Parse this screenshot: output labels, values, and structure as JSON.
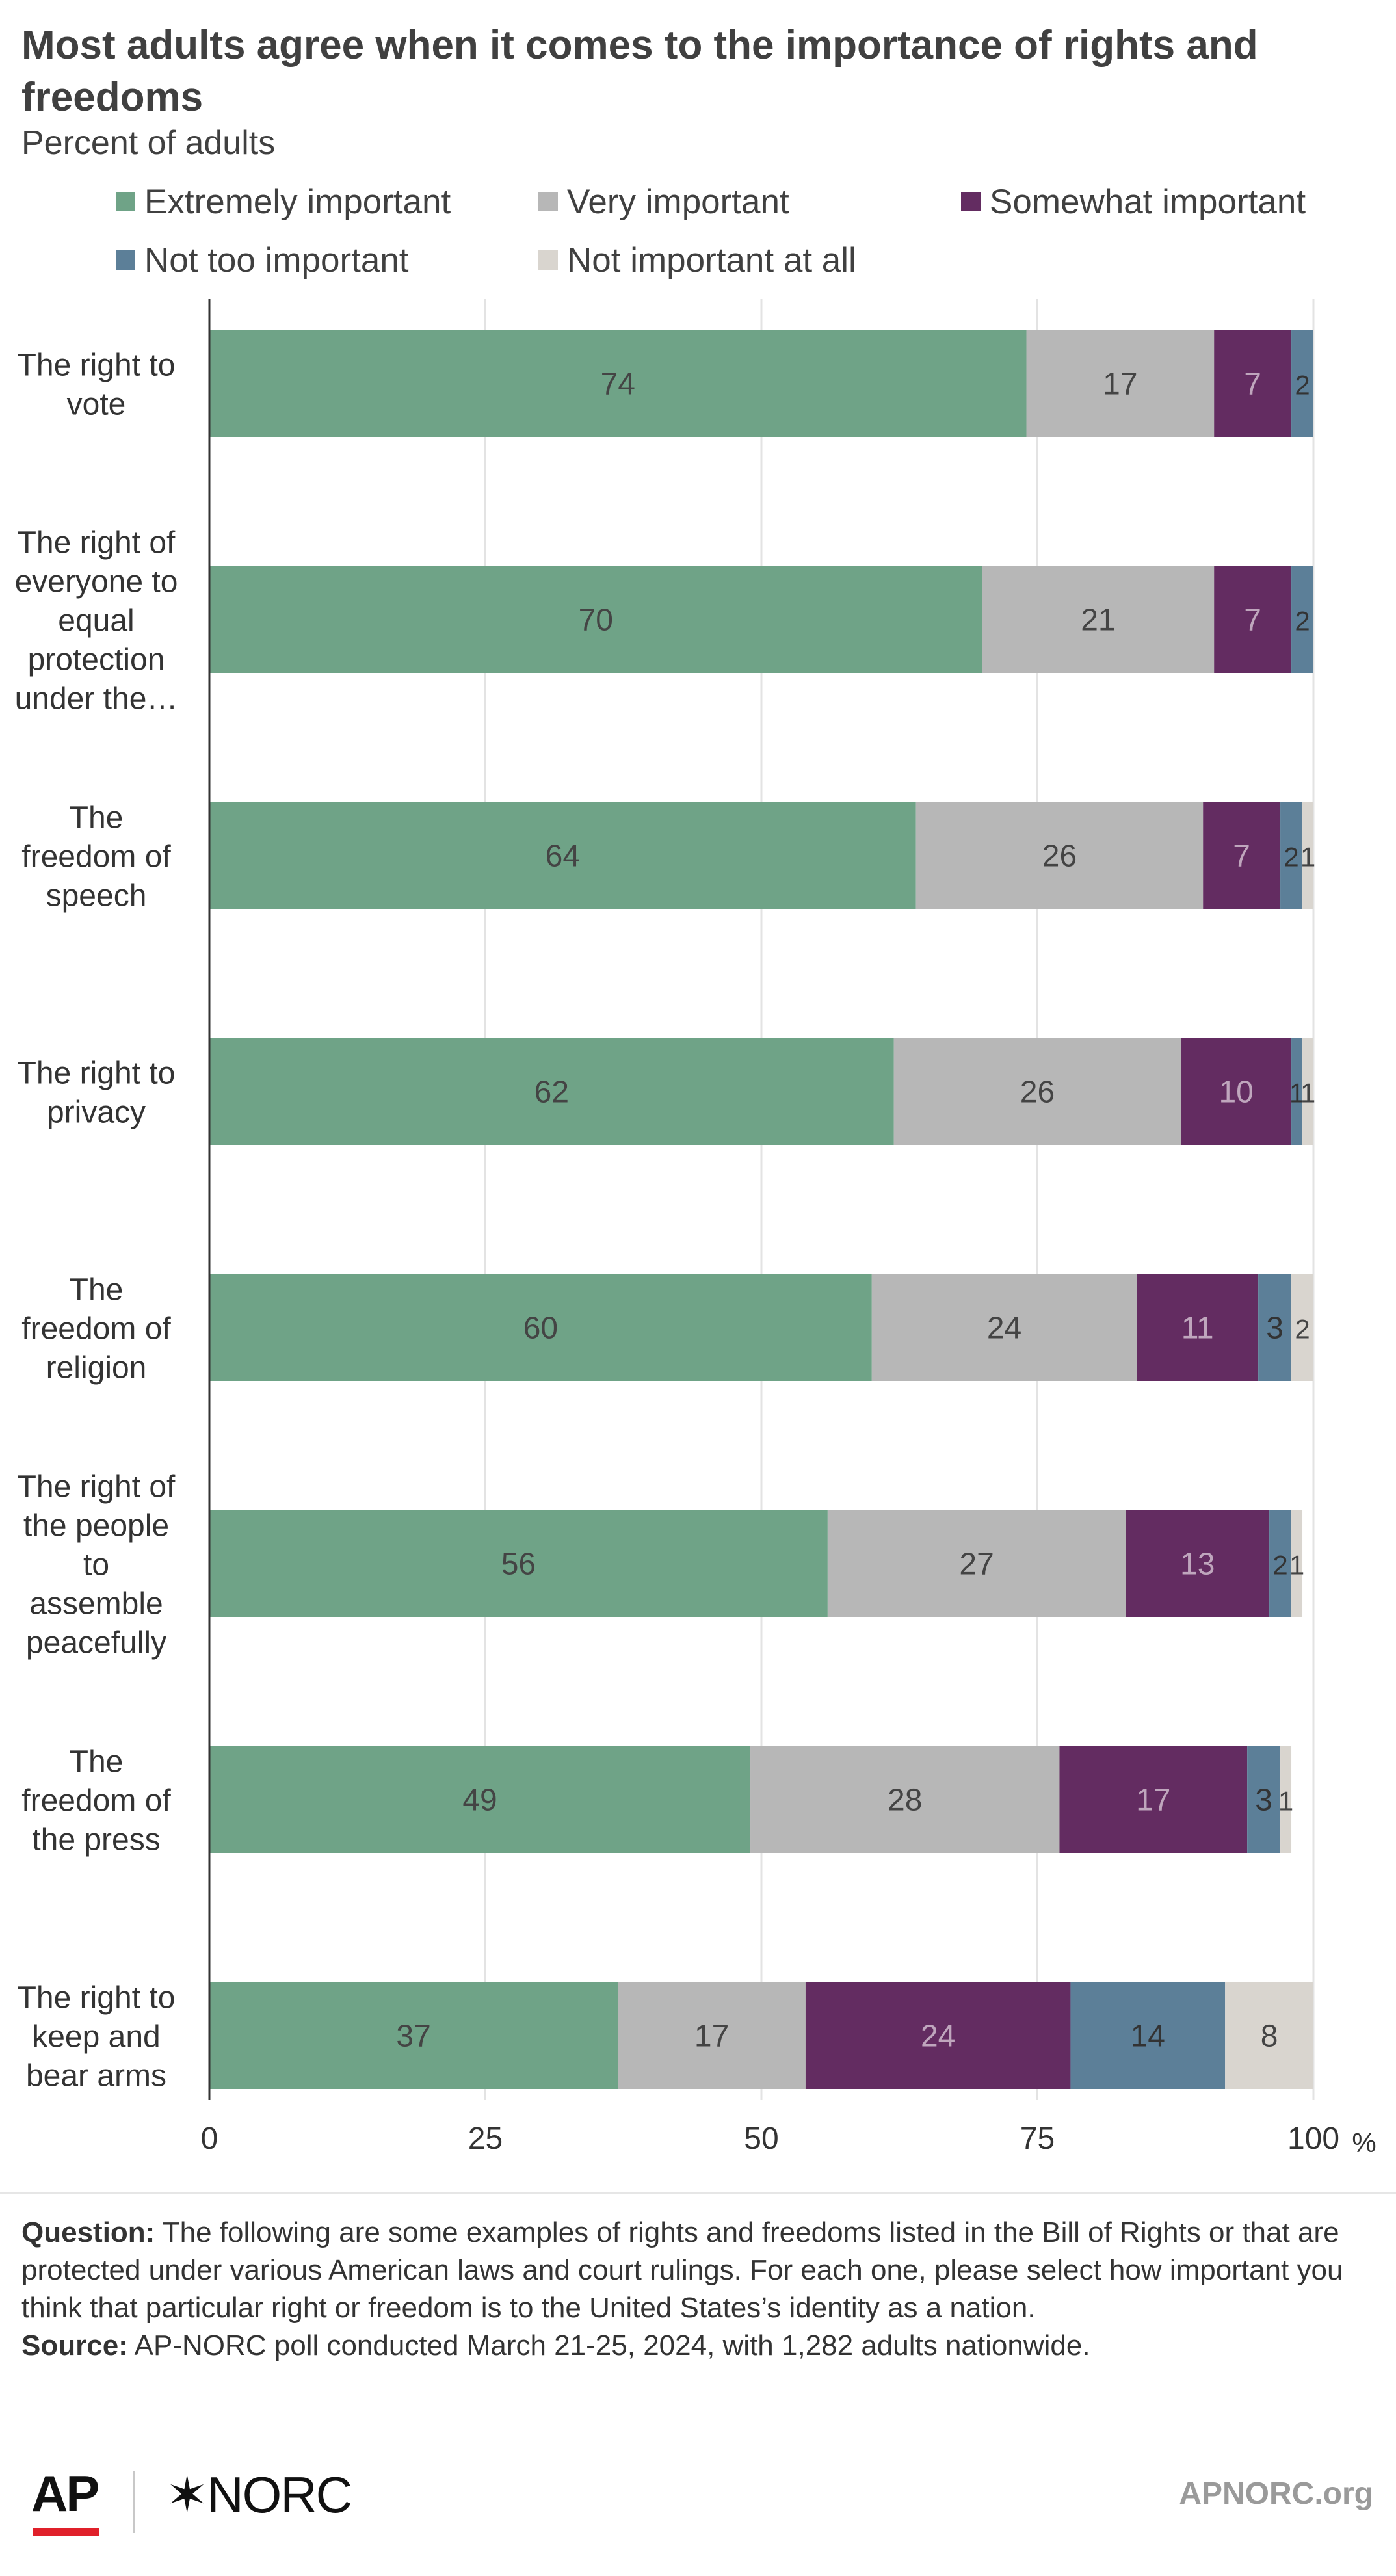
{
  "title": "Most adults agree when it comes to the importance of rights and freedoms",
  "subtitle": "Percent of adults",
  "colors": {
    "extremely": "#6fa387",
    "very": "#b7b7b7",
    "somewhat": "#632c61",
    "not_too": "#5c7f98",
    "not_at_all": "#d9d5cf",
    "grid": "#e3e3e3"
  },
  "chart_data": {
    "type": "bar",
    "orientation": "horizontal",
    "stacked": true,
    "categories": [
      [
        "The right to",
        "vote"
      ],
      [
        "The right of",
        "everyone to",
        "equal",
        "protection",
        "under the…"
      ],
      [
        "The",
        "freedom of",
        "speech"
      ],
      [
        "The right to",
        "privacy"
      ],
      [
        "The",
        "freedom of",
        "religion"
      ],
      [
        "The right of",
        "the people",
        "to",
        "assemble",
        "peacefully"
      ],
      [
        "The",
        "freedom of",
        "the press"
      ],
      [
        "The right to",
        "keep and",
        "bear arms"
      ]
    ],
    "series": [
      {
        "name": "Extremely important",
        "values": [
          74,
          70,
          64,
          62,
          60,
          56,
          49,
          37
        ]
      },
      {
        "name": "Very important",
        "values": [
          17,
          21,
          26,
          26,
          24,
          27,
          28,
          17
        ]
      },
      {
        "name": "Somewhat important",
        "values": [
          7,
          7,
          7,
          10,
          11,
          13,
          17,
          24
        ]
      },
      {
        "name": "Not too important",
        "values": [
          2,
          2,
          2,
          1,
          3,
          2,
          3,
          14
        ]
      },
      {
        "name": "Not important at all",
        "values": [
          0,
          0,
          1,
          1,
          2,
          1,
          1,
          8
        ]
      }
    ],
    "xlim": [
      0,
      100
    ],
    "xticks": [
      "0",
      "25",
      "50",
      "75",
      "100"
    ],
    "xunit": "%",
    "grid": true,
    "legend_position": "top"
  },
  "footer": {
    "question_label": "Question:",
    "question_text": " The following are some examples of rights and freedoms listed in the Bill of Rights or that are protected under various American laws and court rulings. For each one, please select how important you think that particular right or freedom is to the United States’s identity as a nation.",
    "source_label": "Source:",
    "source_text": " AP-NORC poll conducted March 21-25, 2024, with 1,282 adults nationwide."
  },
  "branding": {
    "ap": "AP",
    "norc": "✶NORC",
    "site": "APNORC.org"
  }
}
